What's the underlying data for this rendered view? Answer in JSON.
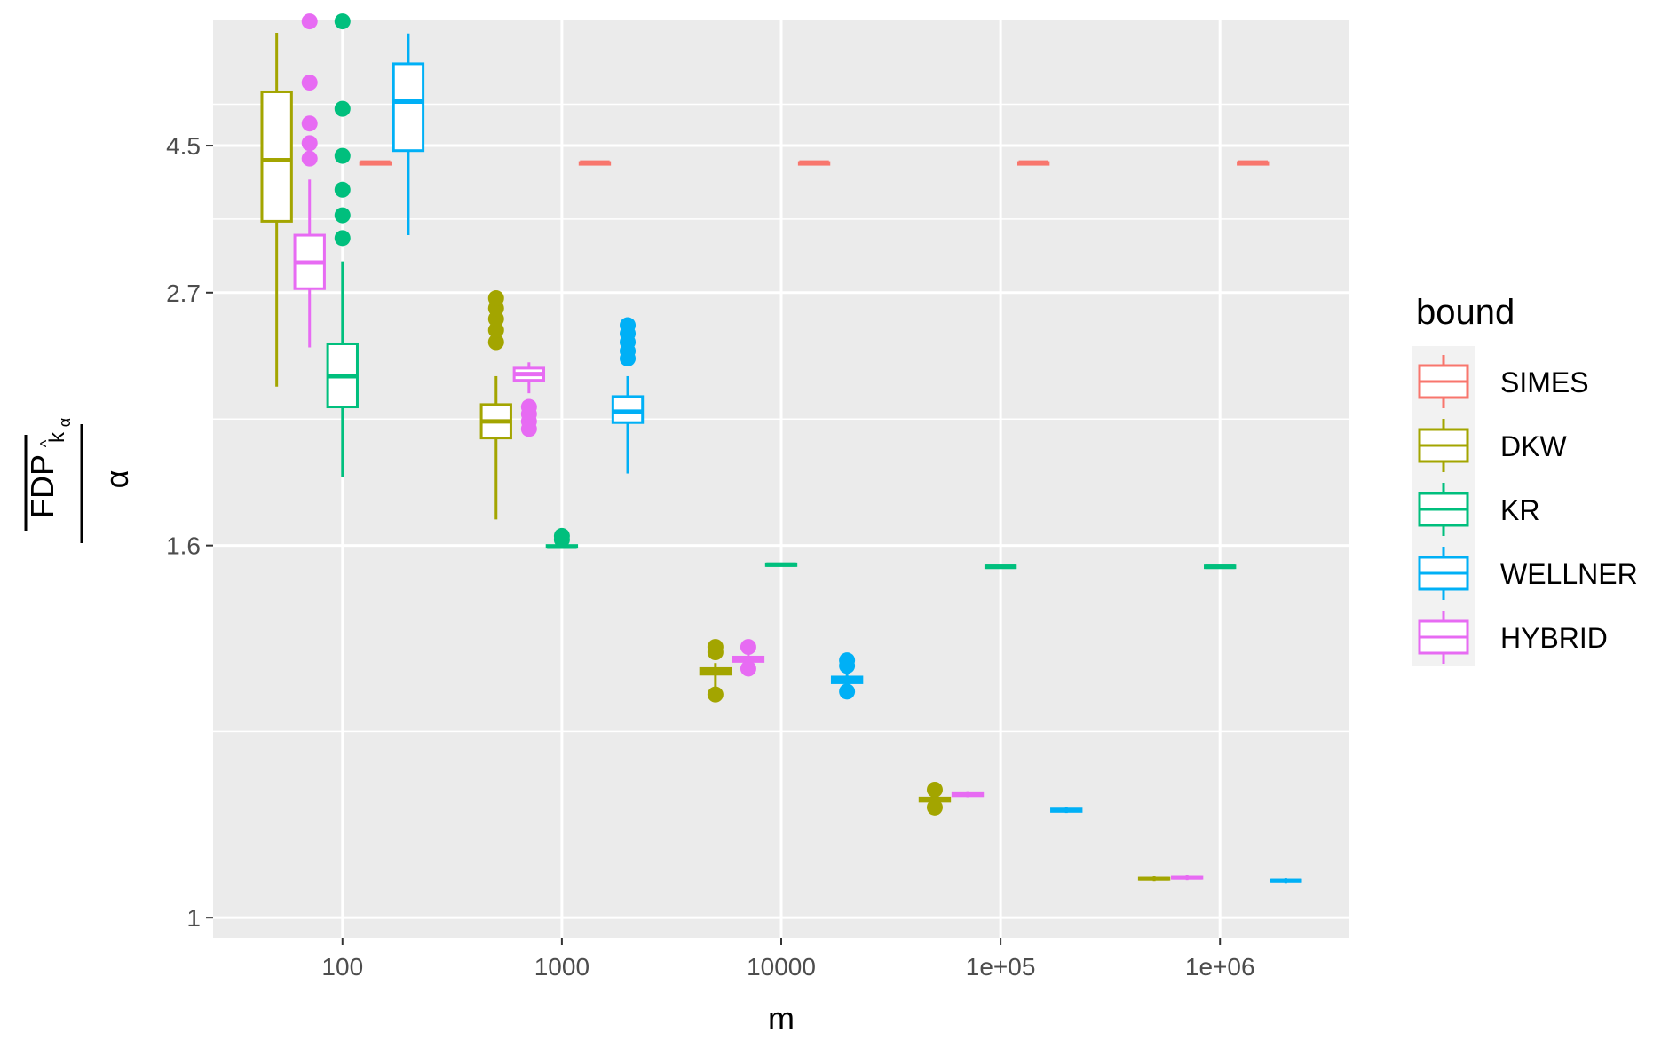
{
  "chart_data": {
    "type": "boxplot",
    "xlabel": "m",
    "ylabel": {
      "numerator": "FDP",
      "numerator_subscript": "k",
      "subscript_hat": "^",
      "subscript_alpha": "α",
      "denominator": "α"
    },
    "x_categories": [
      "100",
      "1000",
      "10000",
      "1e+05",
      "1e+06"
    ],
    "y_scale": "reciprocal",
    "y_ticks": [
      "1",
      "1.6",
      "2.7",
      "4.5"
    ],
    "y_tick_values": [
      1,
      1.6,
      2.7,
      4.5
    ],
    "ylim": [
      0.98,
      10.5
    ],
    "grid": true,
    "legend": {
      "title": "bound",
      "position": "right",
      "entries": [
        "SIMES",
        "DKW",
        "KR",
        "WELLNER",
        "HYBRID"
      ]
    },
    "colors": {
      "SIMES": "#F8766D",
      "DKW": "#A3A500",
      "KR": "#00BF7D",
      "WELLNER": "#00B0F6",
      "HYBRID": "#E76BF3"
    },
    "series": [
      {
        "name": "SIMES",
        "boxes": [
          {
            "m": "100",
            "min": 4.18,
            "q1": 4.18,
            "median": 4.18,
            "q3": 4.18,
            "max": 4.18,
            "outliers": []
          },
          {
            "m": "1000",
            "min": 4.18,
            "q1": 4.18,
            "median": 4.18,
            "q3": 4.18,
            "max": 4.18,
            "outliers": []
          },
          {
            "m": "10000",
            "min": 4.18,
            "q1": 4.18,
            "median": 4.18,
            "q3": 4.18,
            "max": 4.18,
            "outliers": []
          },
          {
            "m": "1e+05",
            "min": 4.18,
            "q1": 4.18,
            "median": 4.18,
            "q3": 4.18,
            "max": 4.18,
            "outliers": []
          },
          {
            "m": "1e+06",
            "min": 4.18,
            "q1": 4.18,
            "median": 4.18,
            "q3": 4.18,
            "max": 4.18,
            "outliers": []
          }
        ]
      },
      {
        "name": "DKW",
        "boxes": [
          {
            "m": "100",
            "min": 2.15,
            "q1": 3.35,
            "median": 4.22,
            "q3": 5.95,
            "max": 9.2,
            "outliers": []
          },
          {
            "m": "1000",
            "min": 1.67,
            "q1": 1.935,
            "median": 2.0,
            "q3": 2.07,
            "max": 2.2,
            "outliers": [
              2.38,
              2.45,
              2.52,
              2.59,
              2.66
            ]
          },
          {
            "m": "10000",
            "min": 1.3,
            "q1": 1.325,
            "median": 1.33,
            "q3": 1.335,
            "max": 1.345,
            "outliers": [
              1.29,
              1.365,
              1.375
            ]
          },
          {
            "m": "1e+05",
            "min": 1.13,
            "q1": 1.133,
            "median": 1.135,
            "q3": 1.137,
            "max": 1.14,
            "outliers": [
              1.125,
              1.148
            ]
          },
          {
            "m": "1e+06",
            "min": 1.038,
            "q1": 1.04,
            "median": 1.041,
            "q3": 1.042,
            "max": 1.044,
            "outliers": []
          }
        ]
      },
      {
        "name": "KR",
        "boxes": [
          {
            "m": "100",
            "min": 1.8,
            "q1": 2.06,
            "median": 2.2,
            "q3": 2.37,
            "max": 2.95,
            "outliers": [
              3.17,
              3.42,
              3.75,
              4.3,
              5.4,
              10.3
            ]
          },
          {
            "m": "1000",
            "min": 1.595,
            "q1": 1.596,
            "median": 1.597,
            "q3": 1.6,
            "max": 1.605,
            "outliers": [
              1.615,
              1.625
            ]
          },
          {
            "m": "10000",
            "min": 1.548,
            "q1": 1.55,
            "median": 1.552,
            "q3": 1.554,
            "max": 1.556,
            "outliers": []
          },
          {
            "m": "1e+05",
            "min": 1.543,
            "q1": 1.545,
            "median": 1.547,
            "q3": 1.549,
            "max": 1.551,
            "outliers": []
          },
          {
            "m": "1e+06",
            "min": 1.543,
            "q1": 1.545,
            "median": 1.547,
            "q3": 1.549,
            "max": 1.551,
            "outliers": []
          }
        ]
      },
      {
        "name": "WELLNER",
        "boxes": [
          {
            "m": "100",
            "min": 3.2,
            "q1": 4.4,
            "median": 5.62,
            "q3": 7.15,
            "max": 9.15,
            "outliers": []
          },
          {
            "m": "1000",
            "min": 1.81,
            "q1": 1.995,
            "median": 2.04,
            "q3": 2.105,
            "max": 2.2,
            "outliers": [
              2.29,
              2.33,
              2.38,
              2.43,
              2.48
            ]
          },
          {
            "m": "10000",
            "min": 1.3,
            "q1": 1.31,
            "median": 1.315,
            "q3": 1.32,
            "max": 1.33,
            "outliers": [
              1.295,
              1.34,
              1.35
            ]
          },
          {
            "m": "1e+05",
            "min": 1.118,
            "q1": 1.12,
            "median": 1.122,
            "q3": 1.124,
            "max": 1.126,
            "outliers": []
          },
          {
            "m": "1e+06",
            "min": 1.036,
            "q1": 1.038,
            "median": 1.039,
            "q3": 1.04,
            "max": 1.042,
            "outliers": []
          }
        ]
      },
      {
        "name": "HYBRID",
        "boxes": [
          {
            "m": "100",
            "min": 2.35,
            "q1": 2.73,
            "median": 2.94,
            "q3": 3.2,
            "max": 3.9,
            "outliers": [
              4.25,
              4.55,
              5.0,
              6.3,
              10.3
            ]
          },
          {
            "m": "1000",
            "min": 2.12,
            "q1": 2.18,
            "median": 2.21,
            "q3": 2.24,
            "max": 2.27,
            "outliers": [
              1.97,
              2.0,
              2.03,
              2.06
            ]
          },
          {
            "m": "10000",
            "min": 1.34,
            "q1": 1.348,
            "median": 1.352,
            "q3": 1.356,
            "max": 1.36,
            "outliers": [
              1.335,
              1.375
            ]
          },
          {
            "m": "1e+05",
            "min": 1.138,
            "q1": 1.14,
            "median": 1.142,
            "q3": 1.144,
            "max": 1.146,
            "outliers": []
          },
          {
            "m": "1e+06",
            "min": 1.039,
            "q1": 1.041,
            "median": 1.042,
            "q3": 1.043,
            "max": 1.045,
            "outliers": []
          }
        ]
      }
    ]
  }
}
